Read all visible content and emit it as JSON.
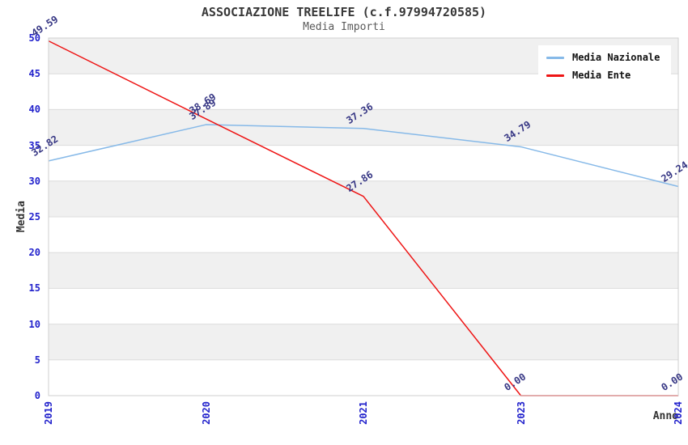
{
  "chart_data": {
    "type": "line",
    "title": "ASSOCIAZIONE TREELIFE (c.f.97994720585)",
    "subtitle": "Media Importi",
    "xlabel": "Anno",
    "ylabel": "Media",
    "categories": [
      "2019",
      "2020",
      "2021",
      "2023",
      "2024"
    ],
    "series": [
      {
        "name": "Media Nazionale",
        "color": "#86b9e8",
        "values": [
          32.82,
          37.89,
          37.36,
          34.79,
          29.24
        ],
        "point_labels": [
          "32.82",
          "37.89",
          "37.36",
          "34.79",
          "29.24"
        ]
      },
      {
        "name": "Media Ente",
        "color": "#ee1515",
        "values": [
          49.59,
          38.69,
          27.86,
          0,
          0
        ],
        "point_labels": [
          "49.59",
          "38.69",
          "27.86",
          "0.00",
          "0.00"
        ]
      }
    ],
    "ylim": [
      0,
      50
    ],
    "yticks": [
      0,
      5,
      10,
      15,
      20,
      25,
      30,
      35,
      40,
      45,
      50
    ],
    "legend_position": "top-right",
    "grid": "horizontal-bands",
    "colors": {
      "tick_label": "#2222cc",
      "point_label": "#363684",
      "band": "#f0f0f0",
      "gridline": "#dcdcdc",
      "border": "#cfcfcf",
      "title": "#383838",
      "subtitle": "#5a5a5a",
      "axis_title": "#333333"
    }
  }
}
